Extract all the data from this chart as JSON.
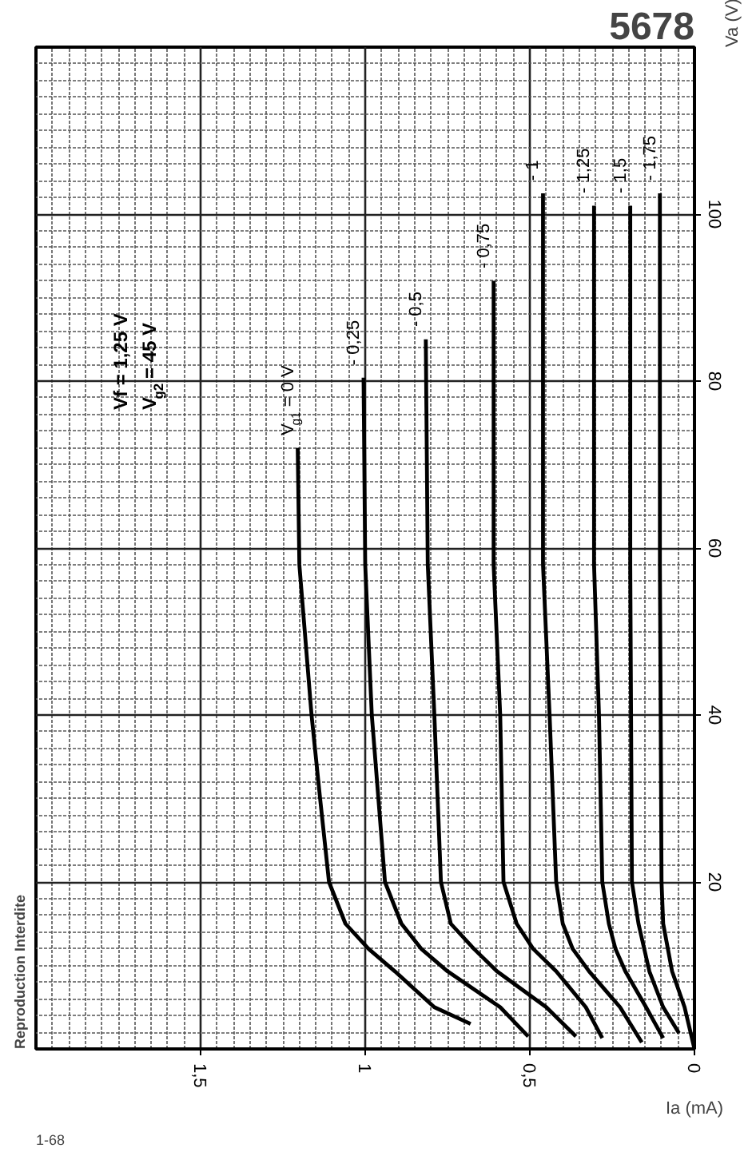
{
  "chart_data": {
    "type": "line",
    "title": "5678",
    "xlabel": "Ia (mA)",
    "ylabel": "Va (V)",
    "xlim": [
      2,
      0
    ],
    "ylim": [
      0,
      120
    ],
    "xticks": [
      0,
      {
        "value": 0.5,
        "label": "0,5"
      },
      1,
      {
        "value": 1.5,
        "label": "1,5"
      }
    ],
    "yticks": [
      20,
      40,
      60,
      80,
      100
    ],
    "grid": true,
    "legend": false,
    "annotations": [
      "Vf = 1,25 V",
      "V$_{g2}$ = 45 V",
      "Reproduction Interdite",
      "1-68"
    ],
    "series": [
      {
        "name": "V$_{g1}$ = 0 V",
        "color": "#000000",
        "x": [
          0.68,
          0.79,
          0.91,
          0.99,
          1.06,
          1.11,
          1.137,
          1.163,
          1.2,
          1.205
        ],
        "values": [
          3,
          5,
          9.3,
          12,
          15,
          20,
          30,
          40,
          58,
          72
        ]
      },
      {
        "name": "- 0,25",
        "color": "#000000",
        "x": [
          0.505,
          0.59,
          0.75,
          0.83,
          0.89,
          0.94,
          0.98,
          1.0,
          1.005
        ],
        "values": [
          1.5,
          5,
          9.3,
          12,
          15,
          20,
          40,
          58,
          80.4
        ]
      },
      {
        "name": "- 0,5",
        "color": "#000000",
        "x": [
          0.36,
          0.45,
          0.6,
          0.67,
          0.74,
          0.77,
          0.79,
          0.81,
          0.816
        ],
        "values": [
          1.5,
          5,
          9.3,
          12,
          15,
          20,
          40,
          58,
          85
        ]
      },
      {
        "name": "- 0,75",
        "color": "#000000",
        "x": [
          0.28,
          0.33,
          0.42,
          0.49,
          0.54,
          0.58,
          0.59,
          0.61,
          0.61
        ],
        "values": [
          1.3,
          5,
          9.3,
          12,
          15,
          20,
          40,
          58,
          92
        ]
      },
      {
        "name": "- 1",
        "color": "#000000",
        "x": [
          0.16,
          0.226,
          0.32,
          0.37,
          0.4,
          0.42,
          0.44,
          0.46,
          0.46
        ],
        "values": [
          0.8,
          5,
          9.3,
          12,
          15,
          20,
          40,
          58,
          102.5
        ]
      },
      {
        "name": "- 1,25",
        "color": "#000000",
        "x": [
          0.095,
          0.147,
          0.21,
          0.24,
          0.26,
          0.28,
          0.29,
          0.305,
          0.305
        ],
        "values": [
          1.3,
          5,
          9.3,
          12,
          15,
          20,
          40,
          58,
          101
        ]
      },
      {
        "name": "- 1,5",
        "color": "#000000",
        "x": [
          0.047,
          0.095,
          0.137,
          0.17,
          0.19,
          0.195,
          0.195
        ],
        "values": [
          1.9,
          5,
          9.3,
          15,
          20,
          58,
          101
        ]
      },
      {
        "name": "- 1,75",
        "color": "#000000",
        "x": [
          0,
          0.03,
          0.068,
          0.095,
          0.1,
          0.105,
          0.105
        ],
        "values": [
          0,
          5,
          9.3,
          15,
          20,
          58,
          102.5
        ]
      }
    ]
  }
}
